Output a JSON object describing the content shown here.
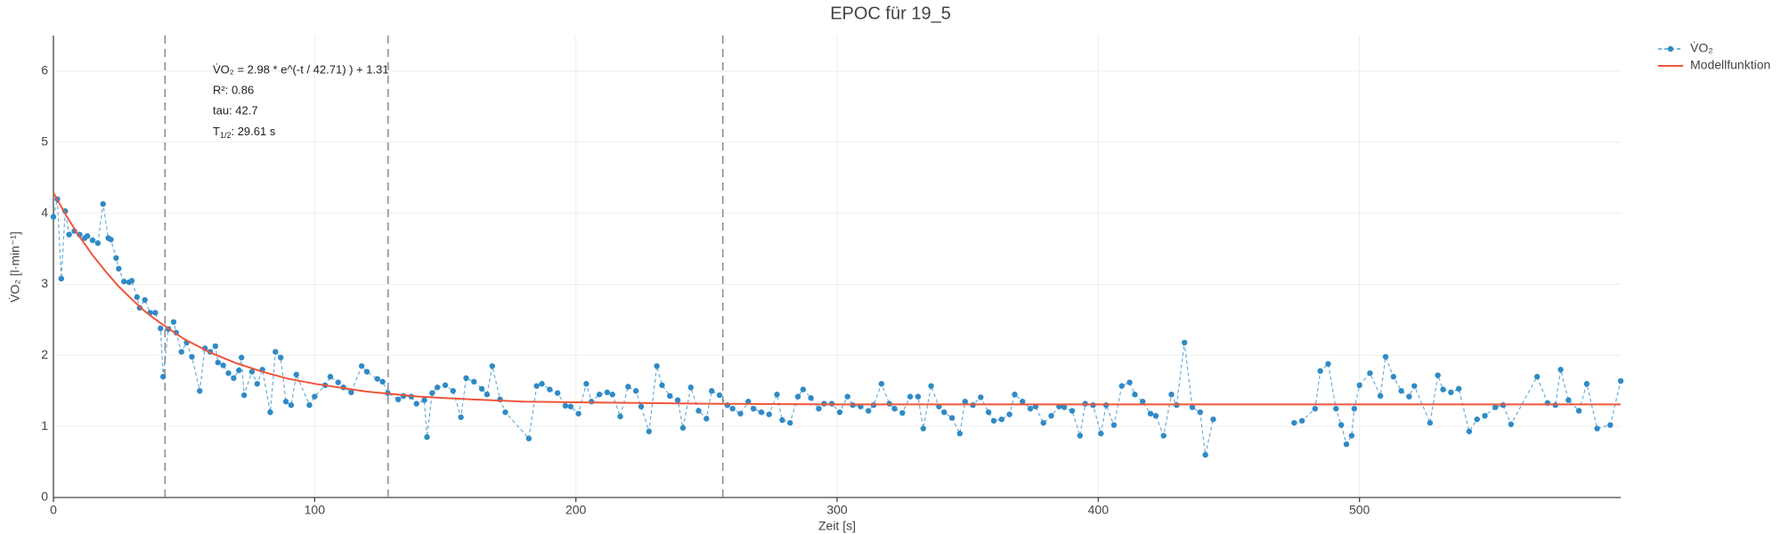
{
  "chart_data": {
    "type": "scatter",
    "title": "EPOC für 19_5",
    "x_label": "Zeit [s]",
    "y_label": "V̇O₂ [l·min⁻¹]",
    "xlim": [
      0,
      600
    ],
    "ylim": [
      0,
      6.5
    ],
    "xticks": [
      0,
      100,
      200,
      300,
      400,
      500
    ],
    "yticks": [
      0,
      1,
      2,
      3,
      4,
      5,
      6
    ],
    "grid": true,
    "legend": "top-right",
    "vlines": [
      42.71,
      128.13,
      256.26
    ],
    "vline_color": "#8a8a8a",
    "annotations": [
      "V̇O₂ = 2.98 * e^(-t / 42.71) ) + 1.31",
      "R²: 0.86",
      "tau: 42.7"
    ],
    "half_life": {
      "symbol": "T",
      "sub": "1/2",
      "text": ": 29.61 s"
    },
    "series": [
      {
        "name": "V̇O₂",
        "color": "#2f8ac6",
        "mode": "lines+markers",
        "x": [
          0,
          1.5,
          3,
          4.5,
          6,
          8,
          10,
          12,
          13,
          15,
          17,
          19,
          21,
          22,
          24,
          25,
          27,
          29,
          30,
          32,
          33,
          35,
          37,
          39,
          41,
          42,
          44,
          46,
          47,
          49,
          51,
          53,
          56,
          58,
          60,
          62,
          63,
          65,
          67,
          69,
          71,
          72,
          73,
          76,
          78,
          80,
          83,
          85,
          87,
          89,
          91,
          93,
          98,
          100,
          104,
          106,
          109,
          111,
          114,
          118,
          120,
          124,
          126,
          128,
          132,
          134,
          137,
          139,
          142,
          143,
          145,
          147,
          150,
          153,
          156,
          158,
          161,
          164,
          166,
          168,
          171,
          173,
          182,
          185,
          187,
          190,
          193,
          196,
          198,
          201,
          204,
          206,
          209,
          212,
          214,
          217,
          220,
          223,
          225,
          228,
          231,
          233,
          236,
          239,
          241,
          244,
          247,
          250,
          252,
          255,
          258,
          260,
          263,
          266,
          268,
          271,
          274,
          277,
          279,
          282,
          285,
          287,
          290,
          293,
          295,
          298,
          301,
          304,
          306,
          309,
          312,
          314,
          317,
          320,
          322,
          325,
          328,
          331,
          333,
          336,
          339,
          341,
          344,
          347,
          349,
          352,
          355,
          358,
          360,
          363,
          366,
          368,
          371,
          374,
          376,
          379,
          382,
          385,
          387,
          390,
          393,
          395,
          398,
          401,
          403,
          406,
          409,
          412,
          414,
          417,
          420,
          422,
          425,
          428,
          430,
          433,
          436,
          439,
          441,
          444,
          459,
          475,
          478,
          483,
          485,
          488,
          491,
          493,
          495,
          497,
          498,
          500,
          504,
          508,
          510,
          513,
          516,
          519,
          521,
          527,
          530,
          532,
          535,
          538,
          542,
          545,
          548,
          552,
          555,
          558,
          568,
          572,
          575,
          577,
          580,
          584,
          587,
          591,
          596,
          600
        ],
        "values": [
          3.95,
          4.2,
          3.08,
          4.03,
          3.7,
          3.75,
          3.7,
          3.65,
          3.68,
          3.62,
          3.58,
          4.13,
          3.65,
          3.63,
          3.37,
          3.22,
          3.04,
          3.03,
          3.05,
          2.82,
          2.67,
          2.78,
          2.6,
          2.6,
          2.38,
          1.7,
          2.37,
          2.47,
          2.32,
          2.05,
          2.18,
          1.98,
          1.5,
          2.1,
          2.05,
          2.13,
          1.9,
          1.86,
          1.75,
          1.68,
          1.79,
          1.97,
          1.44,
          1.77,
          1.6,
          1.8,
          1.2,
          2.05,
          1.97,
          1.35,
          1.3,
          1.73,
          1.3,
          1.42,
          1.58,
          1.7,
          1.62,
          1.55,
          1.48,
          1.85,
          1.77,
          1.67,
          1.63,
          1.47,
          1.38,
          1.43,
          1.42,
          1.32,
          1.37,
          0.85,
          1.47,
          1.55,
          1.58,
          1.5,
          1.13,
          1.68,
          1.63,
          1.53,
          1.45,
          1.85,
          1.38,
          1.2,
          0.83,
          1.57,
          1.6,
          1.52,
          1.47,
          1.29,
          1.28,
          1.18,
          1.6,
          1.35,
          1.45,
          1.48,
          1.45,
          1.14,
          1.56,
          1.5,
          1.28,
          0.93,
          1.85,
          1.58,
          1.43,
          1.37,
          0.98,
          1.55,
          1.22,
          1.11,
          1.5,
          1.44,
          1.3,
          1.25,
          1.18,
          1.35,
          1.25,
          1.2,
          1.17,
          1.45,
          1.09,
          1.05,
          1.42,
          1.52,
          1.4,
          1.25,
          1.32,
          1.32,
          1.2,
          1.42,
          1.3,
          1.28,
          1.22,
          1.3,
          1.6,
          1.32,
          1.25,
          1.19,
          1.42,
          1.42,
          0.97,
          1.57,
          1.28,
          1.2,
          1.12,
          0.9,
          1.35,
          1.3,
          1.41,
          1.2,
          1.08,
          1.1,
          1.17,
          1.45,
          1.35,
          1.25,
          1.28,
          1.05,
          1.15,
          1.28,
          1.27,
          1.22,
          0.87,
          1.32,
          1.3,
          0.9,
          1.3,
          1.02,
          1.57,
          1.62,
          1.45,
          1.35,
          1.18,
          1.15,
          0.87,
          1.45,
          1.3,
          2.18,
          1.27,
          1.2,
          0.6,
          1.1,
          null,
          1.05,
          1.08,
          1.25,
          1.78,
          1.88,
          1.25,
          1.02,
          0.75,
          0.87,
          1.25,
          1.58,
          1.75,
          1.43,
          1.98,
          1.7,
          1.5,
          1.42,
          1.57,
          1.05,
          1.72,
          1.52,
          1.48,
          1.53,
          0.93,
          1.1,
          1.15,
          1.27,
          1.3,
          1.03,
          1.7,
          1.33,
          1.3,
          1.8,
          1.37,
          1.22,
          1.6,
          0.97,
          1.02,
          1.64
        ]
      },
      {
        "name": "Modellfunktion",
        "color": "#ef553b",
        "mode": "lines",
        "x": [
          0,
          5,
          10,
          15,
          20,
          25,
          30,
          35,
          40,
          50,
          60,
          70,
          80,
          90,
          100,
          120,
          140,
          160,
          180,
          200,
          250,
          300,
          400,
          500,
          600
        ],
        "values": [
          4.29,
          3.96,
          3.67,
          3.41,
          3.18,
          2.97,
          2.79,
          2.62,
          2.48,
          2.23,
          2.04,
          1.89,
          1.77,
          1.67,
          1.6,
          1.49,
          1.42,
          1.38,
          1.35,
          1.34,
          1.32,
          1.31,
          1.31,
          1.31,
          1.31
        ]
      }
    ]
  }
}
